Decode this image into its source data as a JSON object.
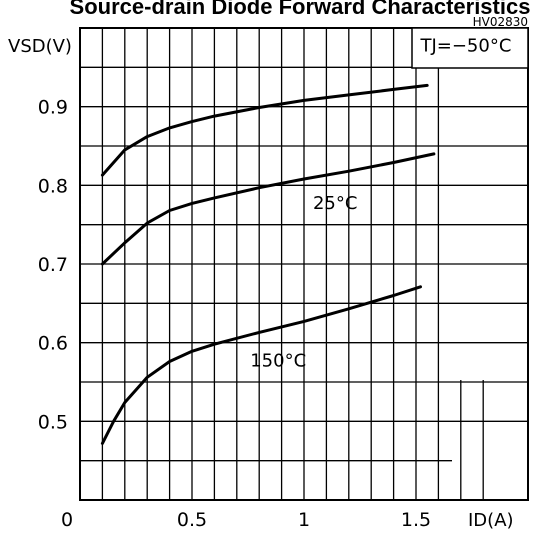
{
  "chart_data": {
    "type": "line",
    "title": "Source-drain Diode Forward Characteristics",
    "figure_code": "HV02830",
    "xlabel": "ID(A)",
    "ylabel": "VSD(V)",
    "xlim": [
      0,
      2.0
    ],
    "ylim": [
      0.4,
      1.0
    ],
    "x_tick_labels": [
      "0",
      "0.5",
      "1",
      "1.5"
    ],
    "x_tick_values": [
      0,
      0.5,
      1,
      1.5
    ],
    "y_tick_labels": [
      "0.5",
      "0.6",
      "0.7",
      "0.8",
      "0.9"
    ],
    "y_tick_values": [
      0.5,
      0.6,
      0.7,
      0.8,
      0.9
    ],
    "grid": true,
    "x_grid": [
      0.1,
      0.2,
      0.3,
      0.4,
      0.5,
      0.6,
      0.7,
      0.8,
      0.9,
      1.0,
      1.1,
      1.2,
      1.3,
      1.4,
      1.5,
      1.6,
      1.7,
      1.8
    ],
    "y_grid": [
      0.45,
      0.5,
      0.55,
      0.6,
      0.65,
      0.7,
      0.75,
      0.8,
      0.85,
      0.9,
      0.95
    ],
    "series": [
      {
        "name": "TJ=−50°C",
        "x": [
          0.1,
          0.2,
          0.3,
          0.4,
          0.5,
          0.6,
          0.8,
          1.0,
          1.2,
          1.4,
          1.55
        ],
        "y": [
          0.813,
          0.845,
          0.862,
          0.873,
          0.881,
          0.888,
          0.899,
          0.908,
          0.915,
          0.922,
          0.927
        ]
      },
      {
        "name": "25°C",
        "x": [
          0.1,
          0.2,
          0.3,
          0.4,
          0.5,
          0.6,
          0.8,
          1.0,
          1.2,
          1.4,
          1.58
        ],
        "y": [
          0.7,
          0.727,
          0.752,
          0.768,
          0.777,
          0.784,
          0.797,
          0.808,
          0.818,
          0.829,
          0.84
        ]
      },
      {
        "name": "150°C",
        "x": [
          0.1,
          0.15,
          0.2,
          0.3,
          0.4,
          0.5,
          0.6,
          0.8,
          1.0,
          1.2,
          1.4,
          1.52
        ],
        "y": [
          0.472,
          0.5,
          0.524,
          0.556,
          0.576,
          0.589,
          0.598,
          0.613,
          0.627,
          0.643,
          0.66,
          0.671
        ]
      }
    ],
    "annotations": [
      {
        "text": "TJ=−50°C",
        "at": [
          1.52,
          0.97
        ]
      },
      {
        "text": "25°C",
        "at": [
          1.04,
          0.77
        ]
      },
      {
        "text": "150°C",
        "at": [
          0.76,
          0.57
        ]
      }
    ]
  }
}
